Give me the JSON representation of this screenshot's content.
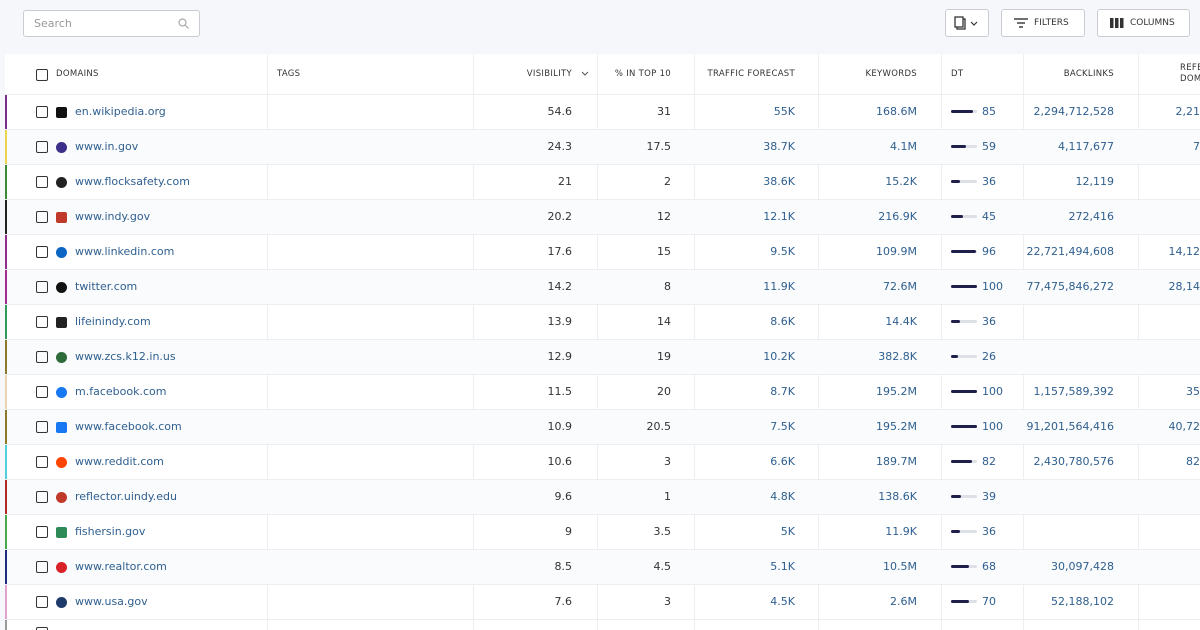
{
  "toolbar": {
    "search_placeholder": "Search",
    "filters": "FILTERS",
    "columns": "COLUMNS"
  },
  "table": {
    "headers": {
      "domains": "DOMAINS",
      "tags": "TAGS",
      "visibility": "VISIBILITY",
      "top10": "% IN TOP 10",
      "traffic": "TRAFFIC FORECAST",
      "keywords": "KEYWORDS",
      "dt": "DT",
      "backlinks": "BACKLINKS",
      "referring": "REFERRING DOMAINS"
    },
    "rows": [
      {
        "domain": "en.wikipedia.org",
        "color": "#7b2d8e",
        "visibility": 54.6,
        "top10": 31,
        "traffic": "55K",
        "keywords": "168.6M",
        "dt": 85,
        "backlinks": "2,294,712,528",
        "referring": "2,21"
      },
      {
        "domain": "www.in.gov",
        "color": "#e8d44d",
        "visibility": 24.3,
        "top10": 17.5,
        "traffic": "38.7K",
        "keywords": "4.1M",
        "dt": 59,
        "backlinks": "4,117,677",
        "referring": "7"
      },
      {
        "domain": "www.flocksafety.com",
        "color": "#3a8a3a",
        "visibility": 21,
        "top10": 2,
        "traffic": "38.6K",
        "keywords": "15.2K",
        "dt": 36,
        "backlinks": "12,119",
        "referring": null
      },
      {
        "domain": "www.indy.gov",
        "color": "#222222",
        "visibility": 20.2,
        "top10": 12,
        "traffic": "12.1K",
        "keywords": "216.9K",
        "dt": 45,
        "backlinks": "272,416",
        "referring": null
      },
      {
        "domain": "www.linkedin.com",
        "color": "#8e2d8a",
        "visibility": 17.6,
        "top10": 15,
        "traffic": "9.5K",
        "keywords": "109.9M",
        "dt": 96,
        "backlinks": "22,721,494,608",
        "referring": "14,12"
      },
      {
        "domain": "twitter.com",
        "color": "#a02d8e",
        "visibility": 14.2,
        "top10": 8,
        "traffic": "11.9K",
        "keywords": "72.6M",
        "dt": 100,
        "backlinks": "77,475,846,272",
        "referring": "28,14"
      },
      {
        "domain": "lifeinindy.com",
        "color": "#2e9a5a",
        "visibility": 13.9,
        "top10": 14,
        "traffic": "8.6K",
        "keywords": "14.4K",
        "dt": 36,
        "backlinks": null,
        "referring": null
      },
      {
        "domain": "www.zcs.k12.in.us",
        "color": "#8a7a2a",
        "visibility": 12.9,
        "top10": 19,
        "traffic": "10.2K",
        "keywords": "382.8K",
        "dt": 26,
        "backlinks": null,
        "referring": null
      },
      {
        "domain": "m.facebook.com",
        "color": "#e8d4b0",
        "visibility": 11.5,
        "top10": 20,
        "traffic": "8.7K",
        "keywords": "195.2M",
        "dt": 100,
        "backlinks": "1,157,589,392",
        "referring": "35"
      },
      {
        "domain": "www.facebook.com",
        "color": "#8a7a2a",
        "visibility": 10.9,
        "top10": 20.5,
        "traffic": "7.5K",
        "keywords": "195.2M",
        "dt": 100,
        "backlinks": "91,201,564,416",
        "referring": "40,72"
      },
      {
        "domain": "www.reddit.com",
        "color": "#4fd0d8",
        "visibility": 10.6,
        "top10": 3,
        "traffic": "6.6K",
        "keywords": "189.7M",
        "dt": 82,
        "backlinks": "2,430,780,576",
        "referring": "82"
      },
      {
        "domain": "reflector.uindy.edu",
        "color": "#b02a2a",
        "visibility": 9.6,
        "top10": 1,
        "traffic": "4.8K",
        "keywords": "138.6K",
        "dt": 39,
        "backlinks": null,
        "referring": null
      },
      {
        "domain": "fishersin.gov",
        "color": "#4aa84a",
        "visibility": 9,
        "top10": 3.5,
        "traffic": "5K",
        "keywords": "11.9K",
        "dt": 36,
        "backlinks": null,
        "referring": null
      },
      {
        "domain": "www.realtor.com",
        "color": "#1e2a7a",
        "visibility": 8.5,
        "top10": 4.5,
        "traffic": "5.1K",
        "keywords": "10.5M",
        "dt": 68,
        "backlinks": "30,097,428",
        "referring": null
      },
      {
        "domain": "www.usa.gov",
        "color": "#e0a0d0",
        "visibility": 7.6,
        "top10": 3,
        "traffic": "4.5K",
        "keywords": "2.6M",
        "dt": 70,
        "backlinks": "52,188,102",
        "referring": null
      }
    ]
  }
}
